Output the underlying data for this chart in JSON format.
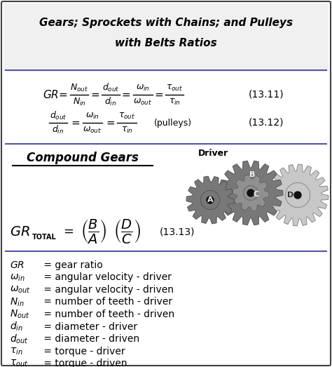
{
  "title_line1": "Gears; Sprockets with Chains; and Pulleys",
  "title_line2": "with Belts Ratios",
  "eq1_label": "(13.11)",
  "eq2_label": "(13.12)",
  "eq3_label": "(13.13)",
  "compound_title": "Compound Gears",
  "driver_label": "Driver",
  "bg_color": "#ffffff",
  "border_color": "#444444",
  "separator_color": "#5555aa",
  "text_color": "#000000",
  "gear_dark": "#787878",
  "gear_medium": "#909090",
  "gear_light": "#c8c8c8",
  "sym_labels": [
    "GR",
    "\\omega_{in}",
    "\\omega_{out}",
    "N_{in}",
    "N_{out}",
    "d_{in}",
    "d_{out}",
    "\\tau_{in}",
    "\\tau_{out}"
  ],
  "text_labels": [
    " = gear ratio",
    " = angular velocity - driver",
    " = angular velocity - driven",
    " = number of teeth - driver",
    " = number of teeth - driven",
    " = diameter - driver",
    " = diameter - driven",
    " = torque - driver",
    " = torque - driven"
  ]
}
